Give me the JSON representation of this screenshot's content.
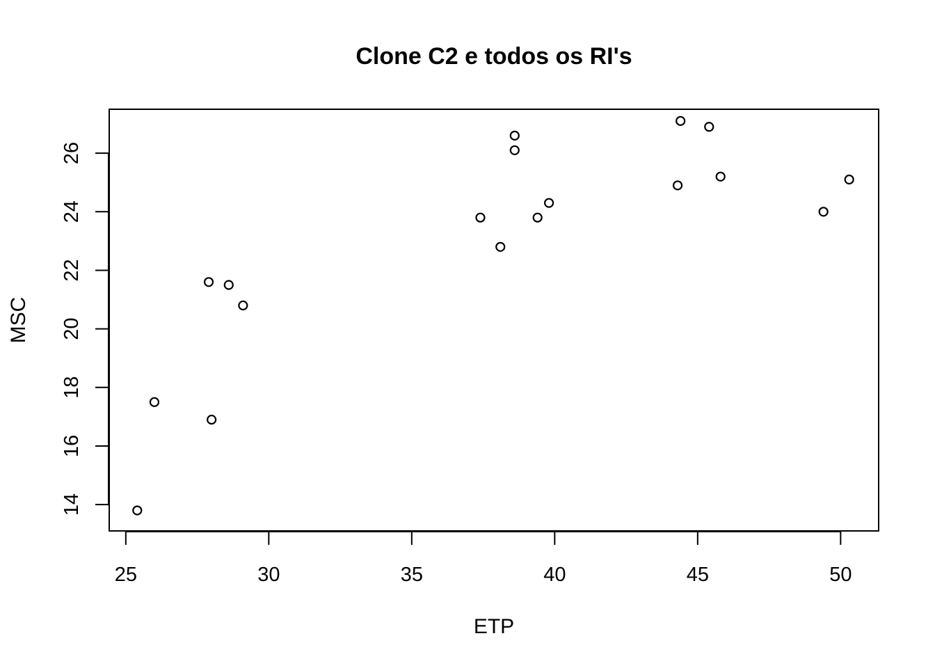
{
  "chart_data": {
    "type": "scatter",
    "title": "Clone C2 e todos os RI's",
    "xlabel": "ETP",
    "ylabel": "MSC",
    "xlim": [
      24.42,
      51.33
    ],
    "ylim": [
      13.1,
      27.5
    ],
    "xticks": [
      25,
      30,
      35,
      40,
      45,
      50
    ],
    "yticks": [
      14,
      16,
      18,
      20,
      22,
      24,
      26
    ],
    "grid": false,
    "series": [
      {
        "points": [
          {
            "x": 25.4,
            "y": 13.8
          },
          {
            "x": 26.0,
            "y": 17.5
          },
          {
            "x": 27.9,
            "y": 21.6
          },
          {
            "x": 28.0,
            "y": 16.9
          },
          {
            "x": 28.6,
            "y": 21.5
          },
          {
            "x": 29.1,
            "y": 20.8
          },
          {
            "x": 37.4,
            "y": 23.8
          },
          {
            "x": 38.1,
            "y": 22.8
          },
          {
            "x": 38.6,
            "y": 26.6
          },
          {
            "x": 38.6,
            "y": 26.1
          },
          {
            "x": 39.4,
            "y": 23.8
          },
          {
            "x": 39.8,
            "y": 24.3
          },
          {
            "x": 44.3,
            "y": 24.9
          },
          {
            "x": 44.4,
            "y": 27.1
          },
          {
            "x": 45.4,
            "y": 26.9
          },
          {
            "x": 45.8,
            "y": 25.2
          },
          {
            "x": 49.4,
            "y": 24.0
          },
          {
            "x": 50.3,
            "y": 25.1
          }
        ]
      }
    ]
  }
}
